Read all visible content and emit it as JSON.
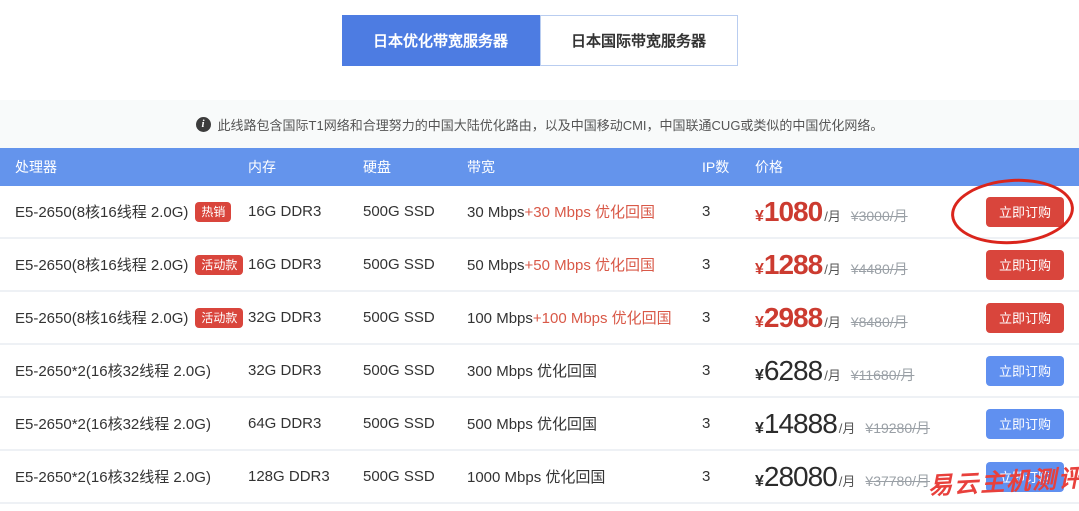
{
  "tabs": [
    {
      "label": "日本优化带宽服务器",
      "active": true
    },
    {
      "label": "日本国际带宽服务器",
      "active": false
    }
  ],
  "notice": {
    "icon": "info-icon",
    "icon_glyph": "i",
    "text": "此线路包含国际T1网络和合理努力的中国大陆优化路由，以及中国移动CMI，中国联通CUG或类似的中国优化网络。"
  },
  "table": {
    "headers": [
      "处理器",
      "内存",
      "硬盘",
      "带宽",
      "IP数",
      "价格",
      ""
    ],
    "order_label": "立即订购",
    "rows": [
      {
        "cpu": "E5-2650(8核16线程 2.0G)",
        "badge": "热销",
        "ram": "16G DDR3",
        "disk": "500G SSD",
        "bw": "30 Mbps",
        "bw_highlight": "+30 Mbps 优化回国",
        "ip": "3",
        "price_currency": "¥",
        "price": "1080",
        "price_unit": "/月",
        "old_price": "¥3000/月",
        "accent": "red"
      },
      {
        "cpu": "E5-2650(8核16线程 2.0G)",
        "badge": "活动款",
        "ram": "16G DDR3",
        "disk": "500G SSD",
        "bw": "50 Mbps",
        "bw_highlight": "+50 Mbps 优化回国",
        "ip": "3",
        "price_currency": "¥",
        "price": "1288",
        "price_unit": "/月",
        "old_price": "¥4480/月",
        "accent": "red"
      },
      {
        "cpu": "E5-2650(8核16线程 2.0G)",
        "badge": "活动款",
        "ram": "32G DDR3",
        "disk": "500G SSD",
        "bw": "100 Mbps",
        "bw_highlight": "+100 Mbps 优化回国",
        "ip": "3",
        "price_currency": "¥",
        "price": "2988",
        "price_unit": "/月",
        "old_price": "¥8480/月",
        "accent": "red"
      },
      {
        "cpu": "E5-2650*2(16核32线程 2.0G)",
        "badge": "",
        "ram": "32G DDR3",
        "disk": "500G SSD",
        "bw": "300 Mbps 优化回国",
        "bw_highlight": "",
        "ip": "3",
        "price_currency": "¥",
        "price": "6288",
        "price_unit": "/月",
        "old_price": "¥11680/月",
        "accent": "blue"
      },
      {
        "cpu": "E5-2650*2(16核32线程 2.0G)",
        "badge": "",
        "ram": "64G DDR3",
        "disk": "500G SSD",
        "bw": "500 Mbps 优化回国",
        "bw_highlight": "",
        "ip": "3",
        "price_currency": "¥",
        "price": "14888",
        "price_unit": "/月",
        "old_price": "¥19280/月",
        "accent": "blue"
      },
      {
        "cpu": "E5-2650*2(16核32线程 2.0G)",
        "badge": "",
        "ram": "128G DDR3",
        "disk": "500G SSD",
        "bw": "1000 Mbps 优化回国",
        "bw_highlight": "",
        "ip": "3",
        "price_currency": "¥",
        "price": "28080",
        "price_unit": "/月",
        "old_price": "¥37780/月",
        "accent": "blue"
      }
    ]
  },
  "annotations": {
    "watermark": "易云主机测评",
    "circle": "red-ellipse-around-first-order-button"
  },
  "colors": {
    "header_bg": "#6494ec",
    "active_tab_bg": "#4d7ce2",
    "red_accent": "#d9453c",
    "price_red": "#cc3b30",
    "blue_button": "#6090f0",
    "bandwidth_highlight": "#d95948",
    "annotation_red": "#da251c",
    "watermark_red": "#e8403c"
  }
}
